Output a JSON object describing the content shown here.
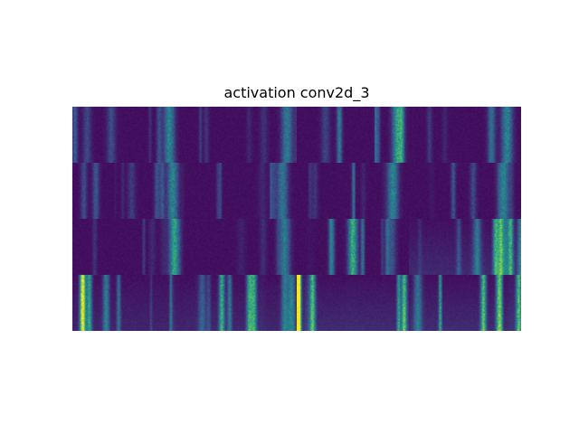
{
  "title": "activation conv2d_3",
  "colormap": "viridis",
  "colors": {
    "background": "#ffffff",
    "low": "#440154",
    "mid": "#21918c",
    "high": "#fde725"
  },
  "grid": {
    "rows": 4,
    "columns": 4
  },
  "tiles": [
    {
      "id": 1,
      "intensity": 0.3,
      "hotspot": "right"
    },
    {
      "id": 2,
      "intensity": 0.25,
      "hotspot": "right"
    },
    {
      "id": 3,
      "intensity": 0.45,
      "hotspot": "right"
    },
    {
      "id": 4,
      "intensity": 0.3,
      "hotspot": "right"
    },
    {
      "id": 5,
      "intensity": 0.3,
      "hotspot": "right"
    },
    {
      "id": 6,
      "intensity": 0.22,
      "hotspot": "right"
    },
    {
      "id": 7,
      "intensity": 0.3,
      "hotspot": "right"
    },
    {
      "id": 8,
      "intensity": 0.3,
      "hotspot": "right"
    },
    {
      "id": 9,
      "intensity": 0.3,
      "hotspot": "right"
    },
    {
      "id": 10,
      "intensity": 0.25,
      "hotspot": "right"
    },
    {
      "id": 11,
      "intensity": 0.5,
      "hotspot": "center"
    },
    {
      "id": 12,
      "intensity": 0.55,
      "hotspot": "spread"
    },
    {
      "id": 13,
      "intensity": 0.45,
      "hotspot": "spread"
    },
    {
      "id": 14,
      "intensity": 0.5,
      "hotspot": "spread"
    },
    {
      "id": 15,
      "intensity": 0.6,
      "hotspot": "spread"
    },
    {
      "id": 16,
      "intensity": 0.6,
      "hotspot": "spread"
    }
  ]
}
